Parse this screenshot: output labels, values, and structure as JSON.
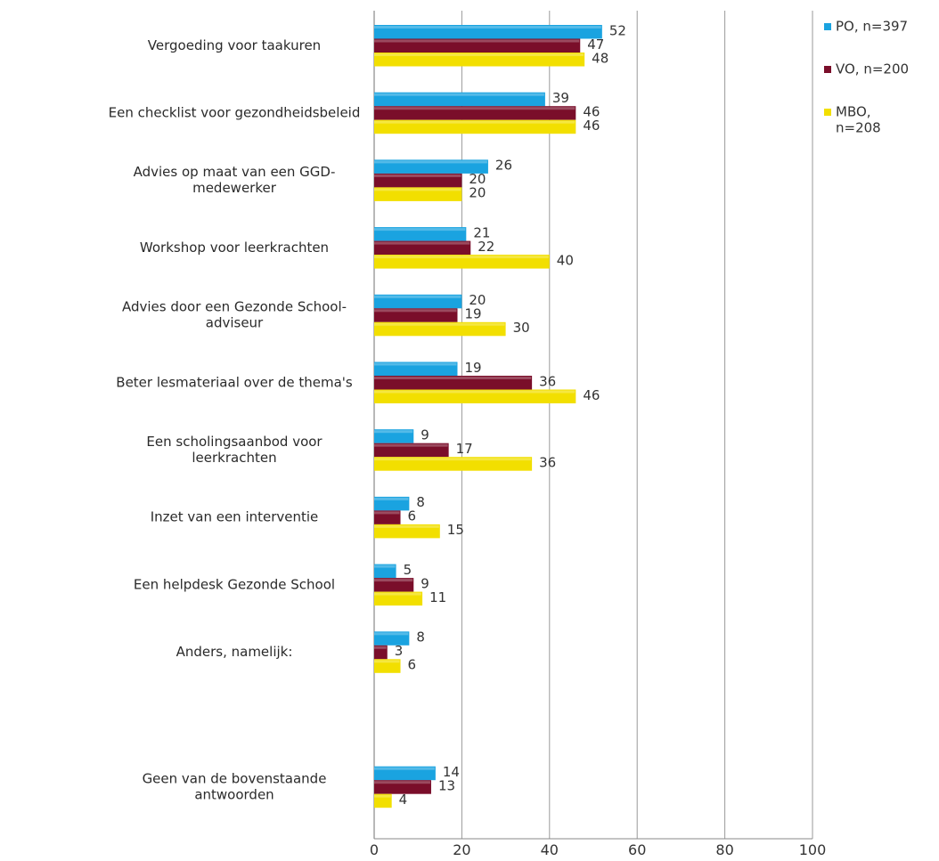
{
  "chart_data": {
    "type": "bar",
    "orientation": "horizontal",
    "categories": [
      [
        "Vergoeding voor taakuren"
      ],
      [
        "Een checklist voor gezondheidsbeleid"
      ],
      [
        "Advies op maat van een GGD-",
        "medewerker"
      ],
      [
        "Workshop voor leerkrachten"
      ],
      [
        "Advies door een Gezonde School-",
        "adviseur"
      ],
      [
        "Beter lesmateriaal over de thema's"
      ],
      [
        "Een scholingsaanbod voor",
        "leerkrachten"
      ],
      [
        "Inzet van een interventie"
      ],
      [
        "Een helpdesk Gezonde School"
      ],
      [
        "Anders, namelijk:"
      ],
      [],
      [
        "Geen van de bovenstaande",
        "antwoorden"
      ]
    ],
    "series": [
      {
        "name": [
          "PO, n=397"
        ],
        "color": "#1aa3e0",
        "values": [
          52,
          39,
          26,
          21,
          20,
          19,
          9,
          8,
          5,
          8,
          null,
          14
        ]
      },
      {
        "name": [
          "VO, n=200"
        ],
        "color": "#7a0e2a",
        "values": [
          47,
          46,
          20,
          22,
          19,
          36,
          17,
          6,
          9,
          3,
          null,
          13
        ]
      },
      {
        "name": [
          "MBO,",
          "n=208"
        ],
        "color": "#f2df00",
        "values": [
          48,
          46,
          20,
          40,
          30,
          46,
          36,
          15,
          11,
          6,
          null,
          4
        ]
      }
    ],
    "xlim": [
      0,
      100
    ],
    "xticks": [
      "0",
      "20",
      "40",
      "60",
      "80",
      "100"
    ],
    "grid": true,
    "legend_position": "top-right"
  }
}
